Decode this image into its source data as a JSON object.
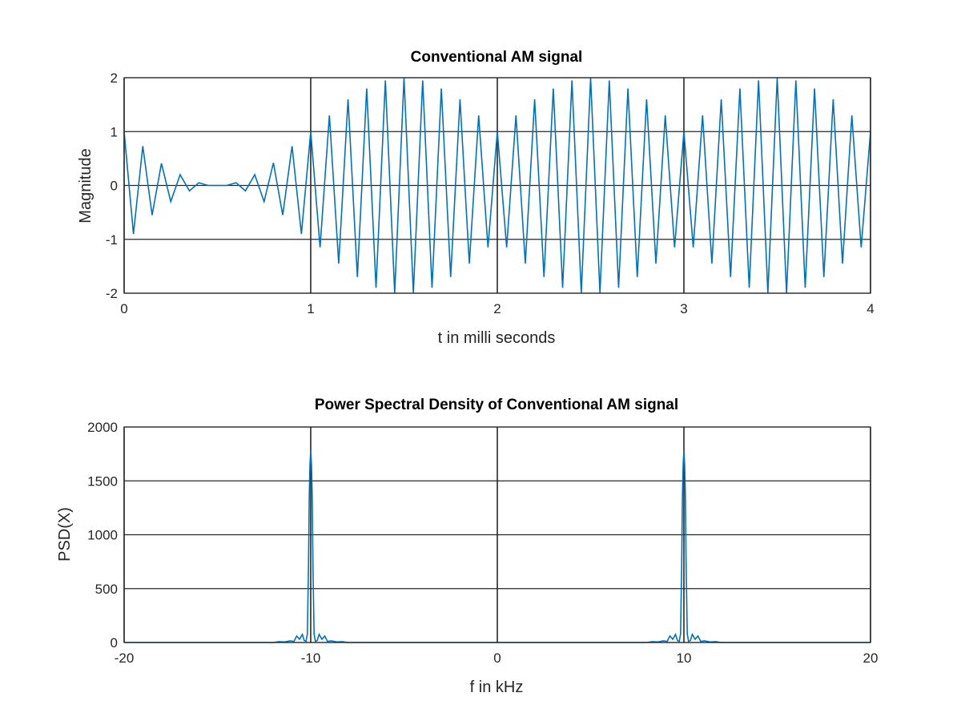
{
  "chart_data": [
    {
      "type": "line",
      "title": "Conventional AM signal",
      "xlabel": "t in milli seconds",
      "ylabel": "Magnitude",
      "xlim": [
        0,
        4
      ],
      "ylim": [
        -2,
        2
      ],
      "xticks": [
        0,
        1,
        2,
        3,
        4
      ],
      "yticks": [
        -2,
        -1,
        0,
        1,
        2
      ],
      "xtick_labels": [
        "0",
        "1",
        "2",
        "3",
        "4"
      ],
      "ytick_labels": [
        "-2",
        "-1",
        "0",
        "1",
        "2"
      ],
      "grid": true,
      "series": [
        {
          "color": "#0072BD",
          "description_of_values": "sampled at 0.05 ms: carrier 10 kHz cos, sinc-shaped envelope for 0 to 1 ms, then (1 + cos(2*pi*1kHz*t)) envelope from 1 to 4 ms",
          "x": [
            0,
            0.05,
            0.1,
            0.15,
            0.2,
            0.25,
            0.3,
            0.35,
            0.4,
            0.45,
            0.5,
            0.55,
            0.6,
            0.65,
            0.7,
            0.75,
            0.8,
            0.85,
            0.9,
            0.95,
            1.0,
            1.05,
            1.1,
            1.15,
            1.2,
            1.25,
            1.3,
            1.35,
            1.4,
            1.45,
            1.5,
            1.55,
            1.6,
            1.65,
            1.7,
            1.75,
            1.8,
            1.85,
            1.9,
            1.95,
            2.0,
            2.05,
            2.1,
            2.15,
            2.2,
            2.25,
            2.3,
            2.35,
            2.4,
            2.45,
            2.5,
            2.55,
            2.6,
            2.65,
            2.7,
            2.75,
            2.8,
            2.85,
            2.9,
            2.95,
            3.0,
            3.05,
            3.1,
            3.15,
            3.2,
            3.25,
            3.3,
            3.35,
            3.4,
            3.45,
            3.5,
            3.55,
            3.6,
            3.65,
            3.7,
            3.75,
            3.8,
            3.85,
            3.9,
            3.95,
            4.0
          ],
          "y": [
            1.0,
            -0.9,
            0.73,
            -0.55,
            0.41,
            -0.3,
            0.2,
            -0.1,
            0.05,
            0.0,
            0.0,
            0.0,
            0.05,
            -0.1,
            0.2,
            -0.3,
            0.42,
            -0.55,
            0.73,
            -0.9,
            1.0,
            -1.15,
            1.3,
            -1.45,
            1.6,
            -1.7,
            1.8,
            -1.9,
            1.95,
            -2.0,
            2.0,
            -2.0,
            1.95,
            -1.9,
            1.8,
            -1.7,
            1.6,
            -1.45,
            1.3,
            -1.15,
            1.0,
            -1.15,
            1.3,
            -1.45,
            1.6,
            -1.7,
            1.8,
            -1.9,
            1.95,
            -2.0,
            2.0,
            -2.0,
            1.95,
            -1.9,
            1.8,
            -1.7,
            1.6,
            -1.45,
            1.3,
            -1.15,
            1.0,
            -1.15,
            1.3,
            -1.45,
            1.6,
            -1.7,
            1.8,
            -1.9,
            1.95,
            -2.0,
            2.0,
            -2.0,
            1.95,
            -1.9,
            1.8,
            -1.7,
            1.6,
            -1.45,
            1.3,
            -1.15,
            1.0
          ]
        }
      ]
    },
    {
      "type": "line",
      "title": "Power Spectral Density of Conventional AM signal",
      "xlabel": "f in kHz",
      "ylabel": "PSD(X)",
      "xlim": [
        -20,
        20
      ],
      "ylim": [
        0,
        2000
      ],
      "xticks": [
        -20,
        -10,
        0,
        10,
        20
      ],
      "yticks": [
        0,
        500,
        1000,
        1500,
        2000
      ],
      "xtick_labels": [
        "-20",
        "-10",
        "0",
        "10",
        "20"
      ],
      "ytick_labels": [
        "0",
        "500",
        "1000",
        "1500",
        "2000"
      ],
      "grid": true,
      "series": [
        {
          "color": "#0072BD",
          "x": [
            -20,
            -12,
            -11.7,
            -11.4,
            -11.1,
            -10.9,
            -10.75,
            -10.6,
            -10.45,
            -10.35,
            -10.25,
            -10.18,
            -10.12,
            -10.08,
            -10.04,
            -10.0,
            -9.96,
            -9.92,
            -9.88,
            -9.82,
            -9.75,
            -9.65,
            -9.55,
            -9.4,
            -9.25,
            -9.1,
            -8.9,
            -8.6,
            -8.3,
            -8.0,
            -2,
            0,
            2,
            8.0,
            8.3,
            8.6,
            8.9,
            9.1,
            9.25,
            9.4,
            9.55,
            9.65,
            9.75,
            9.82,
            9.88,
            9.92,
            9.96,
            10.0,
            10.04,
            10.08,
            10.12,
            10.18,
            10.25,
            10.35,
            10.45,
            10.6,
            10.75,
            10.9,
            11.1,
            11.4,
            11.7,
            12,
            20
          ],
          "y": [
            0,
            0,
            8,
            5,
            15,
            10,
            60,
            30,
            75,
            20,
            10,
            80,
            700,
            1350,
            1650,
            1780,
            1650,
            1350,
            700,
            80,
            10,
            20,
            75,
            30,
            60,
            10,
            15,
            5,
            8,
            0,
            0,
            0,
            0,
            0,
            8,
            5,
            15,
            10,
            60,
            30,
            75,
            20,
            10,
            80,
            700,
            1350,
            1650,
            1780,
            1650,
            1350,
            700,
            80,
            10,
            20,
            75,
            30,
            60,
            10,
            15,
            5,
            8,
            0,
            0
          ]
        }
      ]
    }
  ]
}
